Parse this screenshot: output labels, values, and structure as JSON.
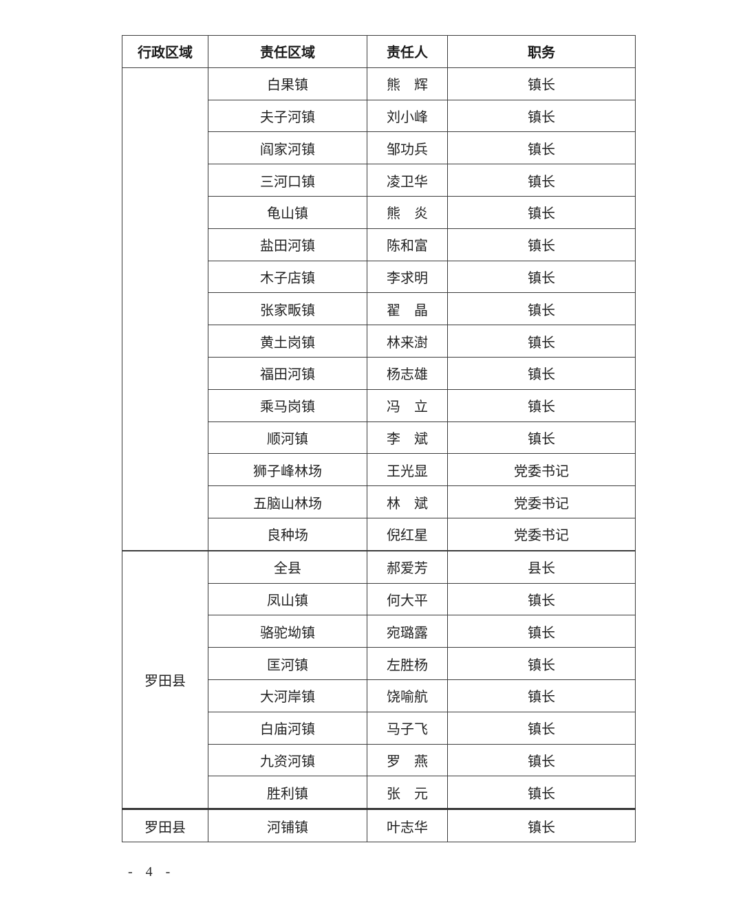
{
  "page": {
    "page_number": "- 4 -"
  },
  "table": {
    "headers": [
      "行政区域",
      "责任区域",
      "责任人",
      "职务"
    ],
    "sections": [
      {
        "region": "",
        "rows": [
          [
            "白果镇",
            "熊　辉",
            "镇长"
          ],
          [
            "夫子河镇",
            "刘小峰",
            "镇长"
          ],
          [
            "阎家河镇",
            "邹功兵",
            "镇长"
          ],
          [
            "三河口镇",
            "凌卫华",
            "镇长"
          ],
          [
            "龟山镇",
            "熊　炎",
            "镇长"
          ],
          [
            "盐田河镇",
            "陈和富",
            "镇长"
          ],
          [
            "木子店镇",
            "李求明",
            "镇长"
          ],
          [
            "张家畈镇",
            "翟　晶",
            "镇长"
          ],
          [
            "黄土岗镇",
            "林来澍",
            "镇长"
          ],
          [
            "福田河镇",
            "杨志雄",
            "镇长"
          ],
          [
            "乘马岗镇",
            "冯　立",
            "镇长"
          ],
          [
            "顺河镇",
            "李　斌",
            "镇长"
          ],
          [
            "狮子峰林场",
            "王光显",
            "党委书记"
          ],
          [
            "五脑山林场",
            "林　斌",
            "党委书记"
          ],
          [
            "良种场",
            "倪红星",
            "党委书记"
          ]
        ]
      },
      {
        "region": "罗田县",
        "rows": [
          [
            "全县",
            "郝爱芳",
            "县长"
          ],
          [
            "凤山镇",
            "何大平",
            "镇长"
          ],
          [
            "骆驼坳镇",
            "宛璐露",
            "镇长"
          ],
          [
            "匡河镇",
            "左胜杨",
            "镇长"
          ],
          [
            "大河岸镇",
            "饶喻航",
            "镇长"
          ],
          [
            "白庙河镇",
            "马子飞",
            "镇长"
          ],
          [
            "九资河镇",
            "罗　燕",
            "镇长"
          ],
          [
            "胜利镇",
            "张　元",
            "镇长"
          ]
        ]
      },
      {
        "region": "罗田县",
        "rows": [
          [
            "河铺镇",
            "叶志华",
            "镇长"
          ]
        ]
      }
    ]
  }
}
